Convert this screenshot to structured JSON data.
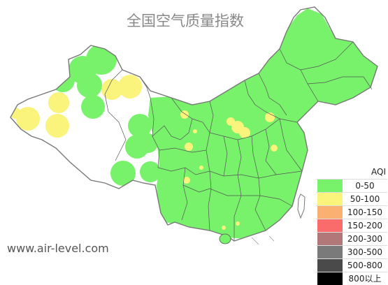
{
  "title": "全国空气质量指数",
  "site_url": "www.air-level.com",
  "colors": {
    "good": "#77f26a",
    "moderate": "#faf37c",
    "border": "#555555",
    "outer_border": "#777777"
  },
  "legend": {
    "title": "AQI",
    "items": [
      {
        "label": "0-50",
        "color": "#77f26a"
      },
      {
        "label": "50-100",
        "color": "#faf37c"
      },
      {
        "label": "100-150",
        "color": "#f9b070"
      },
      {
        "label": "150-200",
        "color": "#fa6b6b"
      },
      {
        "label": "200-300",
        "color": "#b07878"
      },
      {
        "label": "300-500",
        "color": "#7a7a7a"
      },
      {
        "label": "500-800",
        "color": "#4a4a4a"
      },
      {
        "label": "800以上",
        "color": "#000000"
      }
    ]
  }
}
